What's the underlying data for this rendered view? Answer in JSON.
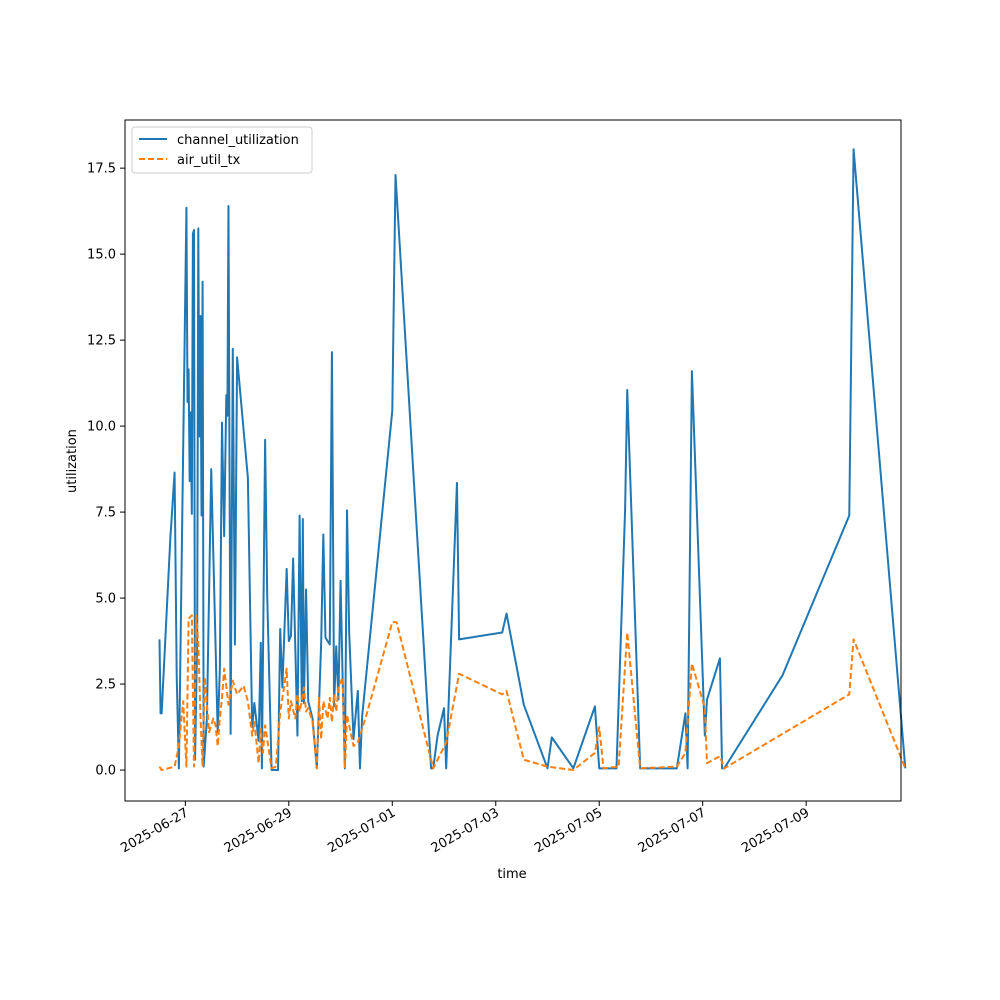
{
  "chart_data": {
    "type": "line",
    "xlabel": "time",
    "ylabel": "utilization",
    "xlim": [
      "2025-06-25T20:00",
      "2025-07-10T20:00"
    ],
    "ylim": [
      -0.9,
      18.9
    ],
    "x_ticks": [
      "2025-06-27",
      "2025-06-29",
      "2025-07-01",
      "2025-07-03",
      "2025-07-05",
      "2025-07-07",
      "2025-07-09"
    ],
    "y_ticks": [
      "0.0",
      "2.5",
      "5.0",
      "7.5",
      "10.0",
      "12.5",
      "15.0",
      "17.5"
    ],
    "grid": false,
    "legend": "top-left",
    "series": [
      {
        "name": "channel_utilization",
        "color": "#1f77b4",
        "style": "solid",
        "points": [
          [
            "2025-06-26T12:00",
            3.8
          ],
          [
            "2025-06-26T12:30",
            1.65
          ],
          [
            "2025-06-26T13:00",
            1.65
          ],
          [
            "2025-06-26T17:00",
            6.7
          ],
          [
            "2025-06-26T19:00",
            8.65
          ],
          [
            "2025-06-26T20:00",
            2.7
          ],
          [
            "2025-06-26T21:00",
            0.05
          ],
          [
            "2025-06-27T00:30",
            16.35
          ],
          [
            "2025-06-27T01:00",
            10.7
          ],
          [
            "2025-06-27T01:30",
            11.65
          ],
          [
            "2025-06-27T02:00",
            8.4
          ],
          [
            "2025-06-27T02:30",
            10.4
          ],
          [
            "2025-06-27T03:00",
            7.45
          ],
          [
            "2025-06-27T03:30",
            15.6
          ],
          [
            "2025-06-27T04:00",
            15.7
          ],
          [
            "2025-06-27T04:30",
            0.3
          ],
          [
            "2025-06-27T05:30",
            3.9
          ],
          [
            "2025-06-27T06:00",
            15.75
          ],
          [
            "2025-06-27T06:30",
            9.7
          ],
          [
            "2025-06-27T07:00",
            13.2
          ],
          [
            "2025-06-27T07:30",
            7.4
          ],
          [
            "2025-06-27T08:00",
            14.2
          ],
          [
            "2025-06-27T08:30",
            0.1
          ],
          [
            "2025-06-27T10:00",
            1.5
          ],
          [
            "2025-06-27T12:00",
            8.75
          ],
          [
            "2025-06-27T15:00",
            1.1
          ],
          [
            "2025-06-27T16:00",
            2.9
          ],
          [
            "2025-06-27T17:00",
            10.1
          ],
          [
            "2025-06-27T18:00",
            6.8
          ],
          [
            "2025-06-27T19:00",
            10.9
          ],
          [
            "2025-06-27T19:30",
            10.3
          ],
          [
            "2025-06-27T20:00",
            16.4
          ],
          [
            "2025-06-27T21:00",
            1.05
          ],
          [
            "2025-06-27T22:00",
            12.25
          ],
          [
            "2025-06-27T23:00",
            3.65
          ],
          [
            "2025-06-28T00:00",
            12.0
          ],
          [
            "2025-06-28T05:00",
            8.5
          ],
          [
            "2025-06-28T07:00",
            1.25
          ],
          [
            "2025-06-28T08:00",
            1.95
          ],
          [
            "2025-06-28T10:00",
            0.85
          ],
          [
            "2025-06-28T11:00",
            3.7
          ],
          [
            "2025-06-28T11:30",
            0.05
          ],
          [
            "2025-06-28T13:00",
            9.6
          ],
          [
            "2025-06-28T14:00",
            5.0
          ],
          [
            "2025-06-28T16:00",
            0.0
          ],
          [
            "2025-06-28T19:00",
            0.0
          ],
          [
            "2025-06-28T20:00",
            4.1
          ],
          [
            "2025-06-28T21:00",
            2.4
          ],
          [
            "2025-06-28T23:00",
            5.85
          ],
          [
            "2025-06-29T00:00",
            3.75
          ],
          [
            "2025-06-29T01:00",
            3.9
          ],
          [
            "2025-06-29T02:00",
            6.15
          ],
          [
            "2025-06-29T04:00",
            1.0
          ],
          [
            "2025-06-29T05:00",
            7.4
          ],
          [
            "2025-06-29T06:00",
            2.0
          ],
          [
            "2025-06-29T06:30",
            7.3
          ],
          [
            "2025-06-29T07:00",
            1.95
          ],
          [
            "2025-06-29T08:00",
            5.25
          ],
          [
            "2025-06-29T09:00",
            2.0
          ],
          [
            "2025-06-29T11:00",
            1.5
          ],
          [
            "2025-06-29T13:00",
            0.05
          ],
          [
            "2025-06-29T15:00",
            3.7
          ],
          [
            "2025-06-29T16:00",
            6.85
          ],
          [
            "2025-06-29T17:00",
            3.85
          ],
          [
            "2025-06-29T19:00",
            3.65
          ],
          [
            "2025-06-29T20:00",
            12.15
          ],
          [
            "2025-06-29T21:00",
            1.85
          ],
          [
            "2025-06-29T22:00",
            3.6
          ],
          [
            "2025-06-29T23:00",
            2.05
          ],
          [
            "2025-06-30T00:00",
            5.5
          ],
          [
            "2025-06-30T01:00",
            2.55
          ],
          [
            "2025-06-30T02:00",
            0.05
          ],
          [
            "2025-06-30T03:00",
            7.55
          ],
          [
            "2025-06-30T04:00",
            4.0
          ],
          [
            "2025-06-30T06:00",
            0.9
          ],
          [
            "2025-06-30T08:00",
            2.3
          ],
          [
            "2025-06-30T09:00",
            0.05
          ],
          [
            "2025-06-30T10:00",
            1.55
          ],
          [
            "2025-07-01T00:00",
            10.45
          ],
          [
            "2025-07-01T01:30",
            17.3
          ],
          [
            "2025-07-01T18:00",
            0.05
          ],
          [
            "2025-07-01T19:00",
            0.05
          ],
          [
            "2025-07-01T21:00",
            1.0
          ],
          [
            "2025-07-02T00:00",
            1.8
          ],
          [
            "2025-07-02T01:00",
            0.05
          ],
          [
            "2025-07-02T06:00",
            8.35
          ],
          [
            "2025-07-02T07:00",
            3.8
          ],
          [
            "2025-07-03T03:00",
            4.0
          ],
          [
            "2025-07-03T05:00",
            4.55
          ],
          [
            "2025-07-03T13:00",
            1.9
          ],
          [
            "2025-07-04T00:00",
            0.05
          ],
          [
            "2025-07-04T02:00",
            0.95
          ],
          [
            "2025-07-04T12:00",
            0.05
          ],
          [
            "2025-07-04T22:00",
            1.85
          ],
          [
            "2025-07-05T00:00",
            0.05
          ],
          [
            "2025-07-05T08:00",
            0.05
          ],
          [
            "2025-07-05T12:00",
            7.55
          ],
          [
            "2025-07-05T13:00",
            11.05
          ],
          [
            "2025-07-05T19:00",
            0.05
          ],
          [
            "2025-07-06T12:00",
            0.05
          ],
          [
            "2025-07-06T16:00",
            1.65
          ],
          [
            "2025-07-06T17:00",
            0.05
          ],
          [
            "2025-07-06T19:00",
            11.6
          ],
          [
            "2025-07-07T01:00",
            1.0
          ],
          [
            "2025-07-07T02:00",
            2.05
          ],
          [
            "2025-07-07T08:00",
            3.25
          ],
          [
            "2025-07-07T09:00",
            0.05
          ],
          [
            "2025-07-07T10:00",
            0.05
          ],
          [
            "2025-07-08T13:00",
            2.75
          ],
          [
            "2025-07-09T20:00",
            7.4
          ],
          [
            "2025-07-09T22:00",
            18.05
          ],
          [
            "2025-07-10T22:00",
            0.05
          ]
        ]
      },
      {
        "name": "air_util_tx",
        "color": "#ff7f0e",
        "style": "dashed",
        "points": [
          [
            "2025-06-26T12:00",
            0.1
          ],
          [
            "2025-06-26T13:00",
            0.0
          ],
          [
            "2025-06-26T19:00",
            0.1
          ],
          [
            "2025-06-26T21:00",
            0.7
          ],
          [
            "2025-06-26T23:00",
            2.0
          ],
          [
            "2025-06-27T00:30",
            0.1
          ],
          [
            "2025-06-27T01:30",
            4.4
          ],
          [
            "2025-06-27T03:00",
            4.5
          ],
          [
            "2025-06-27T04:00",
            0.1
          ],
          [
            "2025-06-27T05:00",
            4.5
          ],
          [
            "2025-06-27T06:00",
            3.7
          ],
          [
            "2025-06-27T07:00",
            1.6
          ],
          [
            "2025-06-27T08:00",
            0.1
          ],
          [
            "2025-06-27T09:00",
            2.7
          ],
          [
            "2025-06-27T11:00",
            1.1
          ],
          [
            "2025-06-27T13:00",
            1.5
          ],
          [
            "2025-06-27T14:00",
            1.3
          ],
          [
            "2025-06-27T15:00",
            0.7
          ],
          [
            "2025-06-27T16:00",
            1.5
          ],
          [
            "2025-06-27T17:00",
            2.1
          ],
          [
            "2025-06-27T18:00",
            2.95
          ],
          [
            "2025-06-27T20:00",
            1.9
          ],
          [
            "2025-06-27T22:00",
            2.6
          ],
          [
            "2025-06-28T00:00",
            2.2
          ],
          [
            "2025-06-28T03:00",
            2.45
          ],
          [
            "2025-06-28T05:00",
            2.0
          ],
          [
            "2025-06-28T07:00",
            1.0
          ],
          [
            "2025-06-28T08:00",
            1.4
          ],
          [
            "2025-06-28T10:00",
            0.2
          ],
          [
            "2025-06-28T11:00",
            1.2
          ],
          [
            "2025-06-28T12:00",
            0.5
          ],
          [
            "2025-06-28T13:00",
            1.3
          ],
          [
            "2025-06-28T16:00",
            0.05
          ],
          [
            "2025-06-28T18:00",
            0.1
          ],
          [
            "2025-06-28T20:00",
            1.7
          ],
          [
            "2025-06-28T22:00",
            2.5
          ],
          [
            "2025-06-28T23:00",
            2.95
          ],
          [
            "2025-06-29T00:00",
            1.5
          ],
          [
            "2025-06-29T01:00",
            2.0
          ],
          [
            "2025-06-29T03:00",
            1.5
          ],
          [
            "2025-06-29T04:00",
            2.2
          ],
          [
            "2025-06-29T05:00",
            1.7
          ],
          [
            "2025-06-29T06:00",
            2.0
          ],
          [
            "2025-06-29T07:00",
            2.4
          ],
          [
            "2025-06-29T08:00",
            1.7
          ],
          [
            "2025-06-29T09:00",
            1.8
          ],
          [
            "2025-06-29T11:00",
            1.4
          ],
          [
            "2025-06-29T13:00",
            0.05
          ],
          [
            "2025-06-29T14:00",
            2.1
          ],
          [
            "2025-06-29T15:00",
            0.9
          ],
          [
            "2025-06-29T16:00",
            2.0
          ],
          [
            "2025-06-29T18:00",
            1.5
          ],
          [
            "2025-06-29T19:00",
            2.1
          ],
          [
            "2025-06-29T20:00",
            1.4
          ],
          [
            "2025-06-29T21:00",
            2.2
          ],
          [
            "2025-06-29T22:00",
            1.7
          ],
          [
            "2025-06-29T23:00",
            2.4
          ],
          [
            "2025-06-30T01:00",
            2.7
          ],
          [
            "2025-06-30T02:00",
            0.05
          ],
          [
            "2025-06-30T03:00",
            1.6
          ],
          [
            "2025-06-30T06:00",
            0.7
          ],
          [
            "2025-06-30T08:00",
            0.8
          ],
          [
            "2025-06-30T12:00",
            1.6
          ],
          [
            "2025-07-01T00:00",
            4.3
          ],
          [
            "2025-07-01T02:00",
            4.3
          ],
          [
            "2025-07-01T19:00",
            0.05
          ],
          [
            "2025-07-02T01:00",
            0.8
          ],
          [
            "2025-07-02T07:00",
            2.8
          ],
          [
            "2025-07-03T03:00",
            2.2
          ],
          [
            "2025-07-03T05:00",
            2.3
          ],
          [
            "2025-07-03T13:00",
            0.3
          ],
          [
            "2025-07-04T00:00",
            0.1
          ],
          [
            "2025-07-04T12:00",
            0.0
          ],
          [
            "2025-07-04T22:00",
            0.5
          ],
          [
            "2025-07-05T00:00",
            1.25
          ],
          [
            "2025-07-05T02:00",
            0.05
          ],
          [
            "2025-07-05T09:00",
            0.1
          ],
          [
            "2025-07-05T13:00",
            4.0
          ],
          [
            "2025-07-05T19:00",
            0.05
          ],
          [
            "2025-07-06T12:00",
            0.1
          ],
          [
            "2025-07-06T16:00",
            0.5
          ],
          [
            "2025-07-06T19:00",
            3.1
          ],
          [
            "2025-07-07T01:00",
            1.8
          ],
          [
            "2025-07-07T02:00",
            0.2
          ],
          [
            "2025-07-07T08:00",
            0.4
          ],
          [
            "2025-07-07T10:00",
            0.05
          ],
          [
            "2025-07-09T20:00",
            2.2
          ],
          [
            "2025-07-09T22:00",
            3.8
          ],
          [
            "2025-07-10T22:00",
            0.05
          ]
        ]
      }
    ]
  }
}
